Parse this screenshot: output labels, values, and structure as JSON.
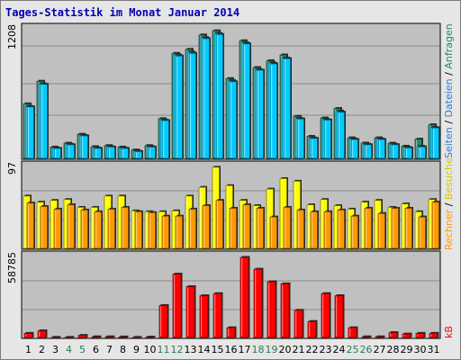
{
  "title": "Tages-Statistik im Monat Januar 2014",
  "colors": {
    "anfragen": "#1e8c6e",
    "dateien": "#00ccff",
    "seiten": "#2b7fd8",
    "besuche": "#ffff00",
    "rechner": "#ff9900",
    "kb": "#ff0000",
    "weekend_label": "#2a7a52",
    "weekday_label": "#000000",
    "panel_bg": "#c0c0c0"
  },
  "chart_data": [
    {
      "type": "bar",
      "title": "Tages-Statistik im Monat Januar 2014",
      "panel": "top",
      "ymax_label": "1208",
      "ylim": [
        0,
        1208
      ],
      "categories": [
        "1",
        "2",
        "3",
        "4",
        "5",
        "6",
        "7",
        "8",
        "9",
        "10",
        "11",
        "12",
        "13",
        "14",
        "15",
        "16",
        "17",
        "18",
        "19",
        "20",
        "21",
        "22",
        "23",
        "24",
        "25",
        "26",
        "27",
        "28",
        "29",
        "30",
        "31"
      ],
      "weekend_days": [
        "4",
        "5",
        "11",
        "12",
        "18",
        "19",
        "25",
        "26"
      ],
      "legend": [
        "Anfragen",
        "Dateien",
        "Seiten"
      ],
      "series": [
        {
          "name": "Anfragen",
          "values": [
            520,
            735,
            108,
            145,
            230,
            112,
            122,
            108,
            80,
            122,
            378,
            1000,
            1038,
            1175,
            1215,
            760,
            1120,
            865,
            930,
            985,
            400,
            210,
            385,
            475,
            196,
            146,
            196,
            145,
            116,
            183,
            320
          ]
        },
        {
          "name": "Dateien",
          "values": [
            495,
            710,
            98,
            135,
            220,
            100,
            112,
            98,
            70,
            112,
            365,
            985,
            1012,
            1150,
            1190,
            740,
            1100,
            845,
            910,
            955,
            380,
            195,
            370,
            450,
            185,
            135,
            185,
            135,
            105,
            115,
            295
          ]
        },
        {
          "name": "Seiten",
          "values": [
            490,
            705,
            95,
            130,
            215,
            95,
            108,
            95,
            65,
            108,
            360,
            975,
            1000,
            1140,
            1180,
            730,
            1090,
            840,
            900,
            950,
            375,
            190,
            365,
            440,
            180,
            130,
            180,
            130,
            100,
            110,
            290
          ]
        }
      ]
    },
    {
      "type": "bar",
      "panel": "middle",
      "ymax_label": "97",
      "ylim": [
        0,
        97
      ],
      "legend": [
        "Rechner",
        "Besuche"
      ],
      "series": [
        {
          "name": "Besuche",
          "values": [
            60,
            53,
            55,
            56,
            47,
            47,
            60,
            60,
            43,
            42,
            42,
            43,
            60,
            70,
            93,
            72,
            55,
            49,
            68,
            80,
            77,
            50,
            56,
            49,
            45,
            53,
            55,
            47,
            51,
            42,
            56
          ]
        },
        {
          "name": "Rechner",
          "values": [
            52,
            48,
            45,
            50,
            44,
            42,
            45,
            47,
            42,
            41,
            37,
            37,
            45,
            49,
            55,
            46,
            50,
            46,
            36,
            47,
            44,
            42,
            42,
            44,
            37,
            46,
            40,
            46,
            46,
            36,
            53
          ]
        }
      ]
    },
    {
      "type": "bar",
      "panel": "bottom",
      "ymax_label": "58785",
      "ylim": [
        0,
        58785
      ],
      "legend": [
        "kB"
      ],
      "series": [
        {
          "name": "kB",
          "values": [
            3000,
            4800,
            100,
            100,
            1500,
            500,
            500,
            400,
            100,
            300,
            23000,
            45500,
            36500,
            30000,
            31500,
            7000,
            57500,
            49000,
            40000,
            38500,
            19500,
            11500,
            31500,
            30000,
            7000,
            500,
            500,
            3500,
            2500,
            3000,
            3000
          ]
        }
      ]
    }
  ],
  "labels": {
    "top_ymax": "1208",
    "mid_ymax": "97",
    "bot_ymax": "58785",
    "right_top_anfragen": "Anfragen",
    "right_top_sep1": " / ",
    "right_top_dateien": "Dateien",
    "right_top_sep2": " / ",
    "right_top_seiten": "Seiten",
    "right_mid_besuche": "Besuche",
    "right_mid_sep": " / ",
    "right_mid_rechner": "Rechner",
    "right_bot_kb": "kB"
  }
}
